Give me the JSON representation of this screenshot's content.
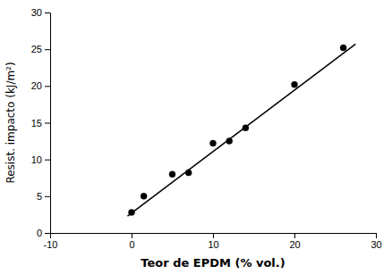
{
  "chart_data": {
    "type": "scatter",
    "xlabel": "Teor de EPDM (% vol.)",
    "ylabel": "Resist. impacto (kJ/m²)",
    "series": [
      {
        "type": "line",
        "color": "#000000",
        "x": [
          -0.5,
          27.5
        ],
        "values": [
          2.3,
          25.7
        ]
      },
      {
        "type": "scatter",
        "color": "#000000",
        "x": [
          0,
          1.5,
          5,
          7,
          10,
          12,
          14,
          20,
          26
        ],
        "values": [
          2.8,
          5.0,
          8.0,
          8.2,
          12.2,
          12.5,
          14.3,
          20.2,
          25.2
        ]
      }
    ],
    "xlim": [
      -10,
      30
    ],
    "ylim": [
      0,
      30
    ],
    "xticks": [
      -10,
      0,
      10,
      20,
      30
    ],
    "yticks": [
      0,
      5,
      10,
      15,
      20,
      25,
      30
    ]
  }
}
